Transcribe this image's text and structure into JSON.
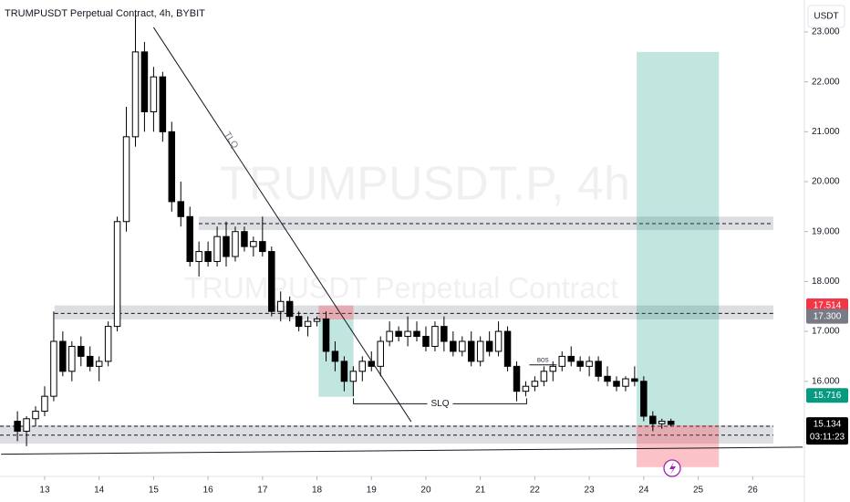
{
  "chart_data": {
    "type": "candlestick",
    "title": "TRUMPUSDT Perpetual Contract, 4h, BYBIT",
    "currency": "USDT",
    "watermark": [
      "TRUMPUSDT.P, 4h",
      "TRUMPUSDT Perpetual Contract"
    ],
    "countdown": "03:11:23",
    "up_color": "#ffffff",
    "down_color": "#000000",
    "x": [
      12.5,
      12.667,
      12.833,
      13,
      13.167,
      13.333,
      13.5,
      13.667,
      13.833,
      14,
      14.167,
      14.333,
      14.5,
      14.667,
      14.833,
      15,
      15.167,
      15.333,
      15.5,
      15.667,
      15.833,
      16,
      16.167,
      16.333,
      16.5,
      16.667,
      16.833,
      17,
      17.167,
      17.333,
      17.5,
      17.667,
      17.833,
      18,
      18.167,
      18.333,
      18.5,
      18.667,
      18.833,
      19,
      19.167,
      19.333,
      19.5,
      19.667,
      19.833,
      20,
      20.167,
      20.333,
      20.5,
      20.667,
      20.833,
      21,
      21.167,
      21.333,
      21.5,
      21.667,
      21.833,
      22,
      22.167,
      22.333,
      22.5,
      22.667,
      22.833,
      23,
      23.167,
      23.333,
      23.5,
      23.667,
      23.833,
      24,
      24.167,
      24.333,
      24.5
    ],
    "open": [
      15.2,
      15.0,
      15.25,
      15.4,
      15.7,
      16.8,
      16.2,
      16.7,
      16.5,
      16.3,
      16.4,
      17.1,
      19.2,
      20.9,
      22.6,
      21.4,
      22.1,
      21.0,
      19.6,
      19.3,
      18.4,
      18.6,
      18.4,
      18.9,
      18.5,
      19.0,
      18.7,
      18.8,
      18.6,
      17.4,
      17.6,
      17.3,
      17.1,
      17.2,
      17.25,
      16.6,
      16.4,
      16.0,
      16.2,
      16.4,
      16.3,
      16.8,
      17.0,
      16.9,
      17.0,
      16.9,
      16.7,
      17.1,
      16.8,
      16.6,
      16.8,
      16.4,
      16.8,
      16.6,
      17.0,
      16.3,
      15.8,
      15.9,
      16.0,
      16.2,
      16.3,
      16.5,
      16.4,
      16.3,
      16.4,
      16.1,
      16.0,
      15.9,
      16.05,
      16.0,
      15.3,
      15.15,
      15.2
    ],
    "high": [
      15.4,
      15.3,
      15.5,
      15.9,
      17.4,
      17.0,
      16.8,
      16.9,
      16.7,
      16.5,
      17.2,
      19.3,
      21.5,
      23.4,
      22.8,
      22.3,
      22.2,
      21.2,
      20.0,
      19.5,
      18.8,
      18.8,
      19.1,
      19.2,
      19.1,
      19.1,
      18.9,
      19.3,
      18.7,
      17.8,
      17.7,
      17.4,
      17.3,
      17.3,
      17.4,
      16.8,
      16.5,
      16.3,
      16.5,
      16.6,
      16.9,
      17.2,
      17.1,
      17.3,
      17.2,
      17.1,
      17.2,
      17.3,
      17.0,
      16.9,
      17.0,
      16.9,
      17.0,
      17.2,
      17.1,
      16.4,
      16.0,
      16.1,
      16.3,
      16.4,
      16.6,
      16.7,
      16.5,
      16.5,
      16.5,
      16.3,
      16.1,
      16.1,
      16.3,
      16.1,
      15.4,
      15.25,
      15.25
    ],
    "low": [
      14.8,
      14.7,
      15.1,
      15.3,
      15.6,
      16.1,
      16.0,
      16.3,
      16.2,
      16.0,
      16.3,
      17.0,
      19.0,
      20.7,
      21.0,
      21.0,
      20.8,
      19.4,
      19.1,
      18.3,
      18.1,
      18.3,
      18.3,
      18.3,
      18.4,
      18.6,
      18.5,
      18.5,
      17.3,
      17.2,
      17.2,
      17.0,
      16.9,
      17.1,
      16.4,
      16.2,
      15.8,
      15.7,
      16.0,
      16.2,
      16.1,
      16.7,
      16.8,
      16.7,
      16.8,
      16.6,
      16.6,
      16.6,
      16.5,
      16.5,
      16.3,
      16.3,
      16.5,
      16.5,
      16.2,
      15.6,
      15.7,
      15.8,
      15.9,
      16.0,
      16.2,
      16.3,
      16.2,
      16.1,
      16.0,
      15.9,
      15.8,
      15.8,
      15.9,
      15.2,
      15.0,
      15.05,
      15.1
    ],
    "close": [
      15.0,
      15.25,
      15.4,
      15.7,
      16.8,
      16.2,
      16.7,
      16.5,
      16.3,
      16.4,
      17.1,
      19.2,
      20.9,
      22.6,
      21.4,
      22.1,
      21.0,
      19.6,
      19.3,
      18.4,
      18.6,
      18.4,
      18.9,
      18.5,
      19.0,
      18.7,
      18.8,
      18.6,
      17.4,
      17.6,
      17.3,
      17.1,
      17.2,
      17.25,
      16.6,
      16.4,
      16.0,
      16.2,
      16.4,
      16.3,
      16.8,
      17.0,
      16.9,
      17.0,
      16.9,
      16.7,
      17.1,
      16.8,
      16.6,
      16.8,
      16.4,
      16.8,
      16.6,
      17.0,
      16.3,
      15.8,
      15.9,
      16.0,
      16.2,
      16.3,
      16.5,
      16.4,
      16.3,
      16.4,
      16.1,
      16.0,
      15.9,
      16.05,
      16.0,
      15.3,
      15.15,
      15.2,
      15.134
    ],
    "xlim": [
      12.18,
      26.95
    ],
    "xticks": [
      13,
      14,
      15,
      16,
      17,
      18,
      19,
      20,
      21,
      22,
      23,
      24,
      25,
      26
    ],
    "ylim": [
      14.13,
      23.64
    ],
    "yticks": [
      {
        "value": 16,
        "label": "16.000"
      },
      {
        "value": 17,
        "label": "17.000"
      },
      {
        "value": 18,
        "label": "18.000"
      },
      {
        "value": 19,
        "label": "19.000"
      },
      {
        "value": 20,
        "label": "20.000"
      },
      {
        "value": 21,
        "label": "21.000"
      },
      {
        "value": 22,
        "label": "22.000"
      },
      {
        "value": 23,
        "label": "23.000"
      }
    ],
    "grid": false,
    "price_tags": [
      {
        "value": 17.514,
        "color": "#f23645"
      },
      {
        "value": {
          "value": 17.3,
          "label": "17.300"
        },
        "color": "#787b86"
      },
      {
        "value": 15.716,
        "color": "#089981"
      },
      {
        "value": 15.134,
        "color": "#000000"
      }
    ],
    "zones": [
      {
        "from": 19.03,
        "to": 19.3,
        "x": [
          15.83,
          26.38
        ]
      },
      {
        "from": 17.24,
        "to": 17.52,
        "x": [
          13.18,
          26.38
        ]
      },
      {
        "from": 14.75,
        "to": 15.12,
        "x": [
          12.18,
          26.38
        ]
      }
    ],
    "levels": [
      {
        "value": 19.16,
        "x": [
          15.83,
          26.38
        ]
      },
      {
        "value": 17.36,
        "x": [
          13.18,
          26.38
        ]
      },
      {
        "value": 15.1,
        "x": [
          12.18,
          26.38
        ]
      },
      {
        "value": 14.92,
        "x": [
          12.18,
          26.38
        ]
      }
    ],
    "position": {
      "entry": 15.12,
      "target": 22.6,
      "stop": 14.28,
      "x": [
        23.87,
        25.38
      ]
    },
    "small_position": {
      "entry": 17.24,
      "target": 15.69,
      "stop": 17.52,
      "x": [
        18.03,
        18.67
      ]
    },
    "trend_line": {
      "x": [
        15.0,
        19.73
      ],
      "y": [
        23.09,
        15.19
      ],
      "label": "TLQ"
    },
    "base_line": {
      "x": [
        12.2,
        26.92
      ],
      "y": [
        14.54,
        14.68
      ]
    },
    "slq": {
      "value": 15.55,
      "x": [
        18.67,
        21.85
      ],
      "label": "SLQ"
    },
    "bos": {
      "value": 16.33,
      "x": [
        21.9,
        22.4
      ],
      "label": "BOS"
    }
  }
}
